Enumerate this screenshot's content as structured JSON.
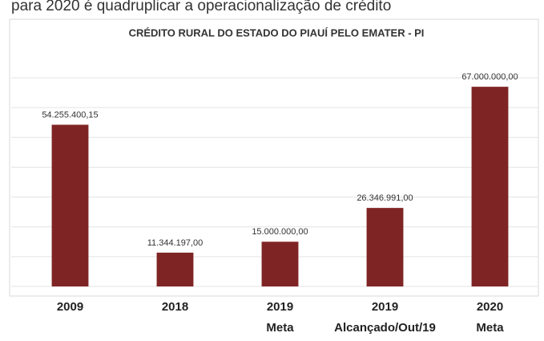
{
  "page_text": "para 2020 é quadruplicar a operacionalização de crédito",
  "chart_data": {
    "type": "bar",
    "title": "CRÉDITO RURAL DO ESTADO DO PIAUÍ PELO EMATER - PI",
    "categories": [
      [
        "2009"
      ],
      [
        "2018"
      ],
      [
        "2019",
        "Meta"
      ],
      [
        "2019",
        "Alcançado/Out/19"
      ],
      [
        "2020",
        "Meta"
      ]
    ],
    "values": [
      54255400.15,
      11344197,
      15000000,
      26346991,
      67000000
    ],
    "value_labels": [
      "54.255.400,15",
      "11.344.197,00",
      "15.000.000,00",
      "26.346.991,00",
      "67.000.000,00"
    ],
    "color": "#7f2424",
    "ylim": [
      0,
      70000000
    ],
    "yticks": [
      0,
      10000000,
      20000000,
      30000000,
      40000000,
      50000000,
      60000000,
      70000000
    ],
    "grid": true
  }
}
